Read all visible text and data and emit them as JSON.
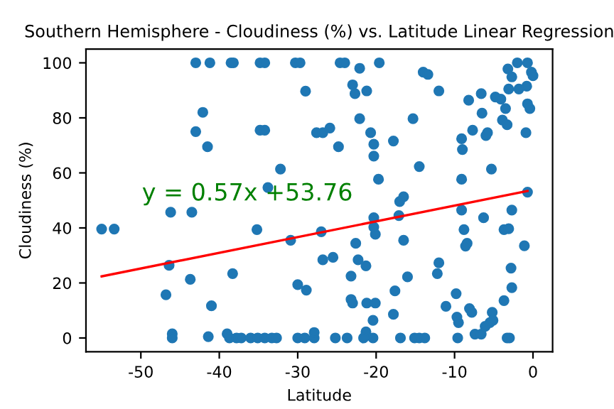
{
  "chart_data": {
    "type": "scatter",
    "title": "Southern Hemisphere - Cloudiness (%) vs. Latitude Linear Regression",
    "xlabel": "Latitude",
    "ylabel": "Cloudiness (%)",
    "xlim": [
      -57,
      2.5
    ],
    "ylim": [
      -5,
      105
    ],
    "xticks": [
      -50,
      -40,
      -30,
      -20,
      -10,
      0
    ],
    "yticks": [
      0,
      20,
      40,
      60,
      80,
      100
    ],
    "grid": false,
    "marker": "circle",
    "annotations": [
      "y = 0.57x +53.76"
    ],
    "series": [
      {
        "color": "#1f77b4",
        "x": [
          -55,
          -53.4,
          -43,
          -41.2,
          -38.5,
          -42.1,
          -43,
          -41.5,
          -46.2,
          -43.5,
          -46.4,
          -43.7,
          -46.8,
          -41,
          -46,
          -46,
          -41.4,
          -39,
          -38.3,
          -38.2,
          -34.8,
          -34.2,
          -30.3,
          -29.7,
          -24.6,
          -24,
          -19.6,
          -22.1,
          -29,
          -23,
          -22.7,
          -21.2,
          -22.1,
          -34.8,
          -34.2,
          -27.6,
          -26.8,
          -25.9,
          -24.8,
          -20.7,
          -20.3,
          -20.3,
          -19.7,
          -32.2,
          -33.8,
          -35.2,
          -30.9,
          -27,
          -20.3,
          -20.3,
          -20.1,
          -22.6,
          -26.8,
          -25.5,
          -22.3,
          -21.3,
          -23.2,
          -30,
          -28.9,
          -23.2,
          -23,
          -21.2,
          -20.1,
          -20.4,
          -21.3,
          -20.4,
          -38.7,
          -37.8,
          -37.2,
          -36,
          -35.1,
          -34.2,
          -33.3,
          -32.7,
          -30,
          -29.1,
          -27.9,
          -25.2,
          -23.7,
          -21.6,
          -27.9,
          -14,
          -13.4,
          -12,
          -15.3,
          -17.8,
          -14.5,
          -16.5,
          -17,
          -17.1,
          -16.5,
          -16,
          -17.6,
          -17.8,
          -16.9,
          -15.1,
          -14.5,
          -13.8,
          -12,
          -12.2,
          -11.1,
          -9.8,
          -9.7,
          -9.5,
          -9.6,
          -9.1,
          -9,
          -8.2,
          -9.1,
          -9.1,
          -8.8,
          -8.4,
          -8.6,
          -8.1,
          -7.8,
          -7.4,
          -6.6,
          -6.6,
          -6.5,
          -7.7,
          -6,
          -5.8,
          -5.3,
          -6.3,
          -6.1,
          -5.5,
          -5.2,
          -5.1,
          -4.8,
          -4.1,
          -3.5,
          -3.9,
          -3.3,
          -3.7,
          -3.7,
          -3,
          -3.3,
          -3.2,
          -2.7,
          -2,
          -3.1,
          -1.8,
          -0.7,
          -0.2,
          0,
          -0.8,
          -0.7,
          -0.4,
          -0.9,
          -0.7,
          -2.7,
          -3.1,
          -1.1,
          -2.8,
          -2.7
        ],
        "values": [
          39.6,
          39.6,
          100,
          100,
          100,
          82,
          75,
          69.5,
          45.7,
          45.7,
          26.4,
          21.3,
          15.7,
          11.7,
          1.5,
          0,
          0.5,
          1.5,
          23.4,
          100,
          100,
          100,
          100,
          100,
          100,
          100,
          100,
          98,
          89.7,
          92,
          88.8,
          89.8,
          79.7,
          75.5,
          75.5,
          74.6,
          74.6,
          76.3,
          69.5,
          74.6,
          70.4,
          66.1,
          57.7,
          61.4,
          54.7,
          39.4,
          35.5,
          38.6,
          43.7,
          40.3,
          37.7,
          34.4,
          28.4,
          29.3,
          28.4,
          26.2,
          22.5,
          19.4,
          17.4,
          14,
          12.7,
          12.7,
          12.7,
          6.4,
          2.2,
          0,
          0,
          0,
          0,
          0,
          0,
          0,
          0,
          0,
          0,
          0,
          0,
          0,
          0,
          0,
          2,
          96.6,
          95.8,
          89.8,
          79.7,
          71.6,
          62.3,
          51.3,
          49.6,
          44.5,
          35.5,
          22.2,
          17.1,
          8.6,
          0,
          0,
          0,
          0,
          27.3,
          23.4,
          11.5,
          16.1,
          7.6,
          5.6,
          0,
          72.4,
          68.5,
          86.4,
          57.7,
          46.5,
          39.4,
          34.4,
          33.4,
          10.7,
          9.3,
          1.4,
          1.4,
          88.8,
          81.7,
          75.5,
          73.6,
          74.6,
          61.4,
          43.7,
          4.2,
          5.6,
          9.3,
          6.4,
          87.6,
          86.8,
          83.4,
          79.2,
          77.5,
          39.4,
          13.6,
          0,
          0,
          97.8,
          94.9,
          100,
          90.5,
          90.5,
          100,
          96.6,
          95.3,
          91.5,
          85.1,
          83.4,
          74.6,
          53,
          46.5,
          39.7,
          33.5,
          25.4,
          18.3
        ]
      },
      {
        "type": "line",
        "color": "#ff0000",
        "marker": "none",
        "x": [
          -55,
          -0.7
        ],
        "values": [
          22.4,
          53.4
        ]
      }
    ]
  }
}
